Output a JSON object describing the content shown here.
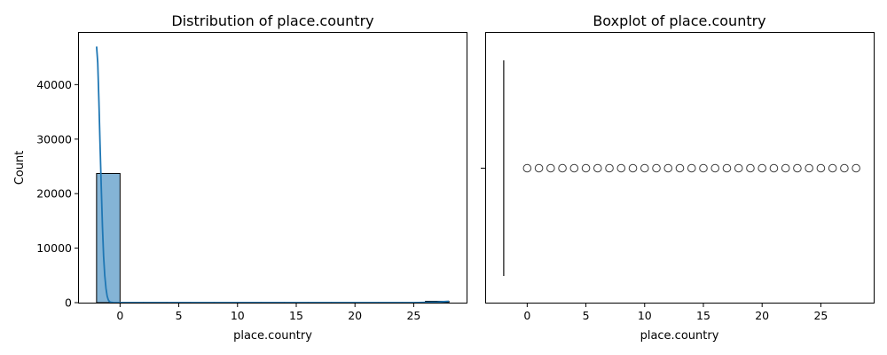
{
  "chart_data": [
    {
      "type": "bar",
      "title": "Distribution of place.country",
      "xlabel": "place.country",
      "ylabel": "Count",
      "xlim": [
        -3.5,
        29.5
      ],
      "ylim": [
        0,
        49500
      ],
      "x_ticks": [
        0,
        5,
        10,
        15,
        20,
        25
      ],
      "y_ticks": [
        0,
        10000,
        20000,
        30000,
        40000
      ],
      "grid": false,
      "bar_color": "#1f77b4",
      "kde_color": "#1f77b4",
      "bins": [
        {
          "x0": -2,
          "x1": 0,
          "count": 23700
        },
        {
          "x0": 0,
          "x1": 2,
          "count": 30
        },
        {
          "x0": 2,
          "x1": 4,
          "count": 30
        },
        {
          "x0": 4,
          "x1": 6,
          "count": 25
        },
        {
          "x0": 6,
          "x1": 8,
          "count": 20
        },
        {
          "x0": 8,
          "x1": 10,
          "count": 20
        },
        {
          "x0": 10,
          "x1": 12,
          "count": 25
        },
        {
          "x0": 12,
          "x1": 14,
          "count": 25
        },
        {
          "x0": 14,
          "x1": 16,
          "count": 20
        },
        {
          "x0": 16,
          "x1": 18,
          "count": 20
        },
        {
          "x0": 18,
          "x1": 20,
          "count": 15
        },
        {
          "x0": 20,
          "x1": 22,
          "count": 15
        },
        {
          "x0": 22,
          "x1": 24,
          "count": 15
        },
        {
          "x0": 24,
          "x1": 26,
          "count": 15
        },
        {
          "x0": 26,
          "x1": 28,
          "count": 250
        }
      ],
      "kde": {
        "x": [
          -2.0,
          -1.9,
          -1.8,
          -1.7,
          -1.6,
          -1.5,
          -1.4,
          -1.3,
          -1.2,
          -1.1,
          -1.0,
          -0.9,
          -0.8,
          -0.6,
          -0.4,
          0,
          5,
          10,
          15,
          20,
          25,
          27,
          28
        ],
        "y": [
          47000,
          44000,
          37000,
          29000,
          21000,
          14000,
          8500,
          5000,
          2600,
          1200,
          500,
          200,
          80,
          20,
          0,
          0,
          0,
          0,
          0,
          0,
          0,
          100,
          250
        ]
      }
    },
    {
      "type": "box",
      "title": "Boxplot of place.country",
      "xlabel": "place.country",
      "xlim": [
        -3.5,
        29.5
      ],
      "x_ticks": [
        0,
        5,
        10,
        15,
        20,
        25
      ],
      "box": {
        "q1": -2,
        "median": -2,
        "q3": -2,
        "whisker_low": -2,
        "whisker_high": -2
      },
      "outliers": [
        0,
        1,
        2,
        3,
        4,
        5,
        6,
        7,
        8,
        9,
        10,
        11,
        12,
        13,
        14,
        15,
        16,
        17,
        18,
        19,
        20,
        21,
        22,
        23,
        24,
        25,
        26,
        27,
        28
      ],
      "outlier_color": "#3f3f3f"
    }
  ]
}
